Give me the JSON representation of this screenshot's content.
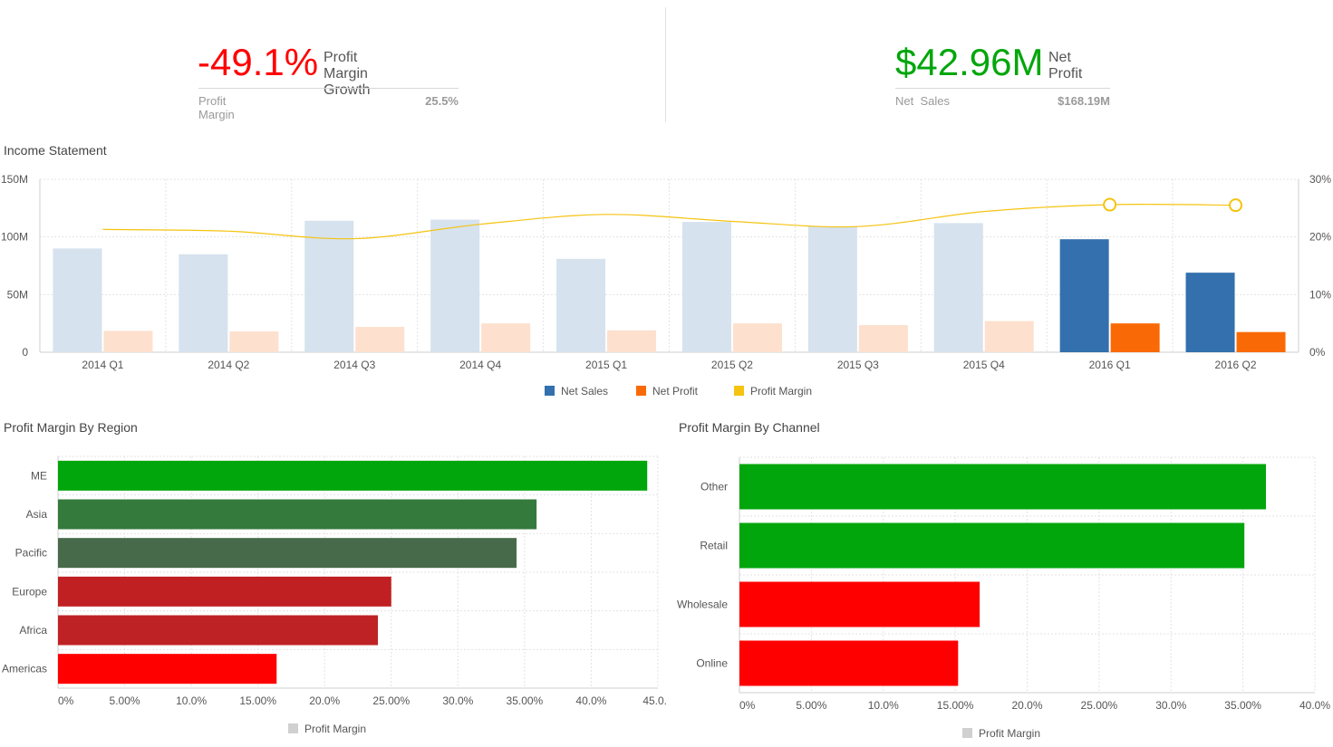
{
  "kpi_left": {
    "value": "-49.1%",
    "value_color": "#ff0000",
    "label": "Profit Margin Growth",
    "sub_label": "Profit Margin",
    "sub_value": "25.5%"
  },
  "kpi_right": {
    "value": "$42.96M",
    "value_color": "#00a60b",
    "label": "Net Profit",
    "sub_label": "Net  Sales",
    "sub_value": "$168.19M"
  },
  "income": {
    "title": "Income Statement"
  },
  "region": {
    "title": "Profit Margin By Region"
  },
  "channel": {
    "title": "Profit Margin By Channel"
  },
  "chart_data": [
    {
      "type": "bar",
      "title": "Income Statement",
      "categories": [
        "2014 Q1",
        "2014 Q2",
        "2014 Q3",
        "2014 Q4",
        "2015 Q1",
        "2015 Q2",
        "2015 Q3",
        "2015 Q4",
        "2016 Q1",
        "2016 Q2"
      ],
      "y_ticks": [
        "0",
        "50M",
        "100M",
        "150M"
      ],
      "y2_ticks": [
        "0%",
        "10%",
        "20%",
        "30%"
      ],
      "ylim": [
        0,
        150
      ],
      "y2lim": [
        0,
        30
      ],
      "highlighted_from_index": 8,
      "grid": true,
      "legend_position": "bottom",
      "series": [
        {
          "name": "Net Sales",
          "kind": "bar",
          "color": "#3370ad",
          "faded_color": "#d6e2ee",
          "values": [
            90,
            85,
            114,
            115,
            81,
            113,
            109,
            112,
            98,
            69
          ]
        },
        {
          "name": "Net Profit",
          "kind": "bar",
          "color": "#f96a06",
          "faded_color": "#fde0cd",
          "values": [
            18.5,
            18,
            22,
            25,
            19,
            25,
            23.5,
            27,
            25,
            17.5
          ]
        },
        {
          "name": "Profit Margin",
          "kind": "line",
          "axis": "right",
          "color": "#f5c310",
          "values": [
            21.3,
            21.0,
            19.7,
            22.2,
            23.9,
            22.7,
            21.8,
            24.4,
            25.6,
            25.5
          ]
        }
      ]
    },
    {
      "type": "bar",
      "orientation": "horizontal",
      "title": "Profit Margin By Region",
      "categories": [
        "ME",
        "Asia",
        "Pacific",
        "Europe",
        "Africa",
        "Americas"
      ],
      "x_ticks": [
        "0%",
        "5.00%",
        "10.0%",
        "15.00%",
        "20.0%",
        "25.00%",
        "30.0%",
        "35.00%",
        "40.0%",
        "45.0..."
      ],
      "xlim": [
        0,
        45
      ],
      "grid": true,
      "legend_position": "bottom",
      "series": [
        {
          "name": "Profit Margin",
          "values": [
            44.2,
            35.9,
            34.4,
            25.0,
            24.0,
            16.4
          ],
          "colors": [
            "#00a60b",
            "#357a3d",
            "#476b4a",
            "#c02022",
            "#bf2225",
            "#ff0000"
          ]
        }
      ]
    },
    {
      "type": "bar",
      "orientation": "horizontal",
      "title": "Profit Margin By Channel",
      "categories": [
        "Other",
        "Retail",
        "Wholesale",
        "Online"
      ],
      "x_ticks": [
        "0%",
        "5.00%",
        "10.0%",
        "15.00%",
        "20.0%",
        "25.00%",
        "30.0%",
        "35.00%",
        "40.0%"
      ],
      "xlim": [
        0,
        40
      ],
      "grid": true,
      "legend_position": "bottom",
      "series": [
        {
          "name": "Profit Margin",
          "values": [
            36.6,
            35.1,
            16.7,
            15.2
          ],
          "colors": [
            "#00a60b",
            "#00a60b",
            "#ff0000",
            "#ff0000"
          ]
        }
      ]
    }
  ]
}
